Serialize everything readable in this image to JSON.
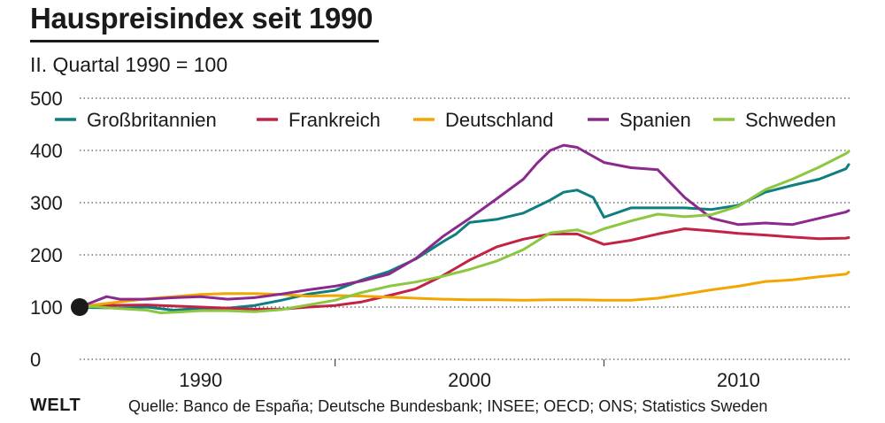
{
  "title": "Hauspreisindex seit 1990",
  "subtitle": "II. Quartal 1990 = 100",
  "footer": {
    "brand": "WELT",
    "source": "Quelle: Banco de España; Deutsche Bundesbank; INSEE; OECD; ONS; Statistics Sweden"
  },
  "chart_data": {
    "type": "line",
    "title": "Hauspreisindex seit 1990",
    "subtitle": "II. Quartal 1990 = 100",
    "xlim": [
      1985.5,
      2014.2
    ],
    "ylim": [
      0,
      500
    ],
    "yticks": [
      0,
      100,
      200,
      300,
      400,
      500
    ],
    "xticks": [
      1990,
      2000,
      2010
    ],
    "grid": "horizontal dotted",
    "legend_position": "top",
    "base_point": {
      "x": 1985.5,
      "y": 100
    },
    "series": [
      {
        "name": "Großbritannien",
        "color": "#0f7e80",
        "x": [
          1985.5,
          1986,
          1987,
          1988,
          1989,
          1990,
          1991,
          1992,
          1993,
          1994,
          1995,
          1996,
          1997,
          1998,
          1999,
          1999.5,
          2000,
          2001,
          2002,
          2003,
          2003.5,
          2004,
          2004.6,
          2005,
          2006,
          2007,
          2008,
          2009,
          2010,
          2011,
          2012,
          2013,
          2014,
          2014.1
        ],
        "y": [
          100,
          99,
          98,
          100,
          94,
          98,
          98,
          103,
          113,
          125,
          132,
          152,
          168,
          192,
          225,
          240,
          262,
          268,
          280,
          305,
          320,
          324,
          310,
          272,
          290,
          290,
          290,
          287,
          295,
          320,
          333,
          345,
          365,
          373
        ]
      },
      {
        "name": "Frankreich",
        "color": "#c22344",
        "x": [
          1985.5,
          1986,
          1988,
          1990,
          1991,
          1992,
          1993,
          1994,
          1995,
          1996,
          1997,
          1998,
          1999,
          2000,
          2001,
          2002,
          2003,
          2004,
          2005,
          2006,
          2007,
          2008,
          2009,
          2010,
          2011,
          2012,
          2013,
          2014,
          2014.1
        ],
        "y": [
          100,
          103,
          104,
          100,
          98,
          96,
          96,
          100,
          103,
          110,
          122,
          135,
          160,
          190,
          215,
          230,
          240,
          240,
          220,
          228,
          240,
          250,
          246,
          241,
          238,
          234,
          231,
          232,
          233
        ]
      },
      {
        "name": "Deutschland",
        "color": "#f2a600",
        "x": [
          1985.5,
          1986,
          1987,
          1988,
          1989,
          1990,
          1991,
          1992,
          1993,
          1994,
          1995,
          1996,
          1997,
          1998,
          1999,
          2000,
          2001,
          2002,
          2003,
          2004,
          2005,
          2006,
          2007,
          2008,
          2009,
          2010,
          2011,
          2012,
          2013,
          2014,
          2014.1
        ],
        "y": [
          100,
          104,
          110,
          116,
          120,
          124,
          126,
          126,
          124,
          121,
          122,
          121,
          119,
          117,
          115,
          114,
          114,
          113,
          114,
          114,
          113,
          113,
          117,
          125,
          133,
          140,
          149,
          152,
          158,
          163,
          167
        ]
      },
      {
        "name": "Spanien",
        "color": "#8b2a8c",
        "x": [
          1985.5,
          1986,
          1986.5,
          1987,
          1988,
          1989,
          1990,
          1991,
          1992,
          1993,
          1994,
          1995,
          1996,
          1997,
          1998,
          1999,
          2000,
          2001,
          2002,
          2002.5,
          2003,
          2003.5,
          2004,
          2005,
          2006,
          2007,
          2008,
          2008.5,
          2009,
          2010,
          2011,
          2012,
          2013,
          2014,
          2014.1
        ],
        "y": [
          100,
          110,
          120,
          115,
          115,
          118,
          120,
          115,
          118,
          125,
          133,
          140,
          150,
          163,
          193,
          235,
          270,
          307,
          345,
          375,
          400,
          410,
          406,
          377,
          367,
          363,
          310,
          290,
          270,
          258,
          261,
          258,
          270,
          282,
          285
        ]
      },
      {
        "name": "Schweden",
        "color": "#8dc63f",
        "x": [
          1985.5,
          1986,
          1987,
          1988,
          1988.5,
          1989,
          1990,
          1991,
          1992,
          1993,
          1994,
          1995,
          1996,
          1997,
          1998,
          1999,
          2000,
          2001,
          2002,
          2003,
          2004,
          2004.5,
          2005,
          2006,
          2007,
          2008,
          2009,
          2010,
          2011,
          2012,
          2013,
          2014,
          2014.1
        ],
        "y": [
          100,
          101,
          97,
          94,
          89,
          90,
          93,
          93,
          91,
          95,
          104,
          113,
          128,
          140,
          148,
          159,
          172,
          188,
          210,
          242,
          248,
          240,
          250,
          265,
          278,
          273,
          277,
          293,
          325,
          345,
          368,
          394,
          398
        ]
      }
    ]
  }
}
